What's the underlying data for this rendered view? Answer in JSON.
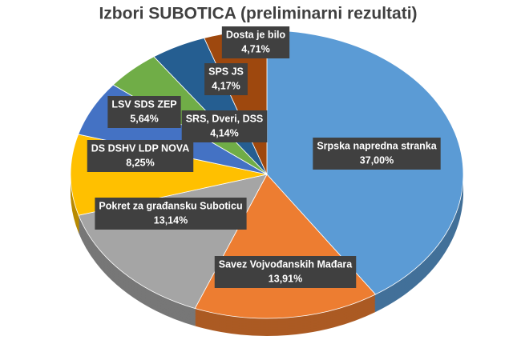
{
  "chart_data": {
    "type": "pie",
    "title": "Izbori SUBOTICA (preliminarni rezultati)",
    "categories": [
      "Srpska napredna stranka",
      "Savez Vojvođanskih Mađara",
      "Pokret za građansku Suboticu",
      "DS DSHV LDP NOVA",
      "LSV SDS ZEP",
      "SRS, Dveri, DSS",
      "SPS JS",
      "Dosta je bilo"
    ],
    "values": [
      37.0,
      13.91,
      13.14,
      8.25,
      5.64,
      4.14,
      4.17,
      4.71
    ],
    "value_labels": [
      "37,00%",
      "13,91%",
      "13,14%",
      "8,25%",
      "5,64%",
      "4,14%",
      "4,17%",
      "4,71%"
    ],
    "colors": [
      "#5b9bd5",
      "#ed7d31",
      "#a5a5a5",
      "#ffc000",
      "#4472c4",
      "#70ad47",
      "#255e91",
      "#9e480e"
    ]
  }
}
